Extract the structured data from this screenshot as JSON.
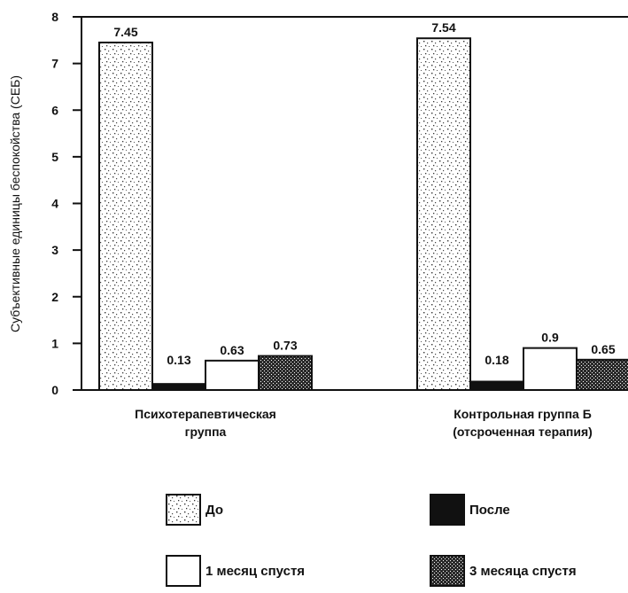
{
  "chart_data": {
    "type": "bar",
    "ylabel": "Субъективные единицы беспокойства (СЕБ)",
    "ylim": [
      0,
      8
    ],
    "yticks": [
      "0",
      "1",
      "2",
      "3",
      "4",
      "5",
      "6",
      "7",
      "8"
    ],
    "categories": [
      [
        "Психотерапевтическая",
        "группа"
      ],
      [
        "Контрольная группа Б",
        "(отсроченная терапия)"
      ]
    ],
    "series": [
      {
        "name": "До",
        "fill": "dots",
        "values": [
          7.45,
          7.54
        ],
        "value_labels": [
          "7.45",
          "7.54"
        ]
      },
      {
        "name": "После",
        "fill": "black",
        "values": [
          0.13,
          0.18
        ],
        "value_labels": [
          "0.13",
          "0.18"
        ]
      },
      {
        "name": "1 месяц спустя",
        "fill": "white",
        "values": [
          0.63,
          0.9
        ],
        "value_labels": [
          "0.63",
          "0.9"
        ]
      },
      {
        "name": "3 месяца спустя",
        "fill": "hatch",
        "values": [
          0.73,
          0.65
        ],
        "value_labels": [
          "0.73",
          "0.65"
        ]
      }
    ],
    "legend_position": "bottom"
  }
}
